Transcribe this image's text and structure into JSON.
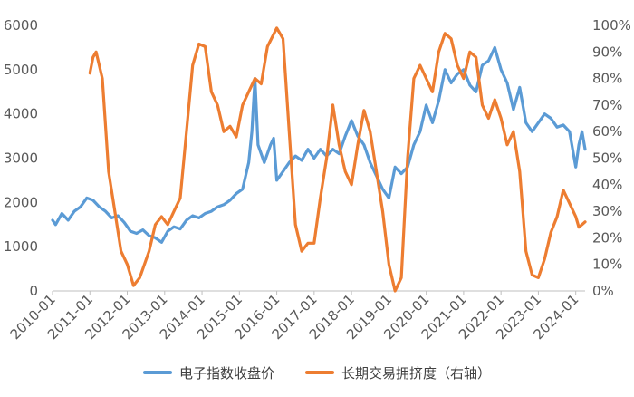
{
  "chart_data": {
    "type": "line",
    "title": "",
    "x_range": [
      "2010-01",
      "2024-04"
    ],
    "x_tick_labels": [
      "2010-01",
      "2011-01",
      "2012-01",
      "2013-01",
      "2014-01",
      "2015-01",
      "2016-01",
      "2017-01",
      "2018-01",
      "2019-01",
      "2020-01",
      "2021-01",
      "2022-01",
      "2023-01",
      "2024-01"
    ],
    "y_left": {
      "range": [
        0,
        6000
      ],
      "tick_labels": [
        "0",
        "1000",
        "2000",
        "3000",
        "4000",
        "5000",
        "6000"
      ]
    },
    "y_right": {
      "range": [
        0,
        100
      ],
      "tick_labels": [
        "0%",
        "10%",
        "20%",
        "30%",
        "40%",
        "50%",
        "60%",
        "70%",
        "80%",
        "90%",
        "100%"
      ]
    },
    "grid": false,
    "legend_position": "bottom",
    "series": [
      {
        "name": "电子指数收盘价",
        "axis": "left",
        "color": "#5B9BD5",
        "points": [
          [
            "2010-01",
            1600
          ],
          [
            "2010-02",
            1500
          ],
          [
            "2010-04",
            1750
          ],
          [
            "2010-06",
            1600
          ],
          [
            "2010-08",
            1800
          ],
          [
            "2010-10",
            1900
          ],
          [
            "2010-12",
            2100
          ],
          [
            "2011-02",
            2050
          ],
          [
            "2011-04",
            1900
          ],
          [
            "2011-06",
            1800
          ],
          [
            "2011-08",
            1650
          ],
          [
            "2011-10",
            1700
          ],
          [
            "2011-12",
            1550
          ],
          [
            "2012-02",
            1350
          ],
          [
            "2012-04",
            1300
          ],
          [
            "2012-06",
            1380
          ],
          [
            "2012-08",
            1250
          ],
          [
            "2012-10",
            1200
          ],
          [
            "2012-12",
            1100
          ],
          [
            "2013-02",
            1350
          ],
          [
            "2013-04",
            1450
          ],
          [
            "2013-06",
            1400
          ],
          [
            "2013-08",
            1600
          ],
          [
            "2013-10",
            1700
          ],
          [
            "2013-12",
            1650
          ],
          [
            "2014-02",
            1750
          ],
          [
            "2014-04",
            1800
          ],
          [
            "2014-06",
            1900
          ],
          [
            "2014-08",
            1950
          ],
          [
            "2014-10",
            2050
          ],
          [
            "2014-12",
            2200
          ],
          [
            "2015-02",
            2300
          ],
          [
            "2015-04",
            2900
          ],
          [
            "2015-05",
            3600
          ],
          [
            "2015-06",
            4800
          ],
          [
            "2015-07",
            3300
          ],
          [
            "2015-09",
            2900
          ],
          [
            "2015-11",
            3300
          ],
          [
            "2015-12",
            3450
          ],
          [
            "2016-01",
            2500
          ],
          [
            "2016-03",
            2700
          ],
          [
            "2016-05",
            2900
          ],
          [
            "2016-07",
            3050
          ],
          [
            "2016-09",
            2950
          ],
          [
            "2016-11",
            3200
          ],
          [
            "2017-01",
            3000
          ],
          [
            "2017-03",
            3200
          ],
          [
            "2017-05",
            3050
          ],
          [
            "2017-07",
            3200
          ],
          [
            "2017-09",
            3100
          ],
          [
            "2017-11",
            3500
          ],
          [
            "2018-01",
            3850
          ],
          [
            "2018-03",
            3500
          ],
          [
            "2018-05",
            3300
          ],
          [
            "2018-07",
            2900
          ],
          [
            "2018-09",
            2600
          ],
          [
            "2018-11",
            2300
          ],
          [
            "2019-01",
            2100
          ],
          [
            "2019-03",
            2800
          ],
          [
            "2019-05",
            2650
          ],
          [
            "2019-07",
            2800
          ],
          [
            "2019-09",
            3300
          ],
          [
            "2019-11",
            3600
          ],
          [
            "2020-01",
            4200
          ],
          [
            "2020-03",
            3800
          ],
          [
            "2020-05",
            4300
          ],
          [
            "2020-07",
            5000
          ],
          [
            "2020-09",
            4700
          ],
          [
            "2020-11",
            4900
          ],
          [
            "2021-01",
            5000
          ],
          [
            "2021-03",
            4650
          ],
          [
            "2021-05",
            4500
          ],
          [
            "2021-07",
            5100
          ],
          [
            "2021-09",
            5200
          ],
          [
            "2021-11",
            5500
          ],
          [
            "2022-01",
            5000
          ],
          [
            "2022-03",
            4700
          ],
          [
            "2022-05",
            4100
          ],
          [
            "2022-07",
            4600
          ],
          [
            "2022-09",
            3800
          ],
          [
            "2022-11",
            3600
          ],
          [
            "2023-01",
            3800
          ],
          [
            "2023-03",
            4000
          ],
          [
            "2023-05",
            3900
          ],
          [
            "2023-07",
            3700
          ],
          [
            "2023-09",
            3750
          ],
          [
            "2023-11",
            3600
          ],
          [
            "2024-01",
            2800
          ],
          [
            "2024-02",
            3300
          ],
          [
            "2024-03",
            3600
          ],
          [
            "2024-04",
            3200
          ]
        ]
      },
      {
        "name": "长期交易拥挤度（右轴）",
        "axis": "right",
        "color": "#ED7D31",
        "points": [
          [
            "2011-01",
            82
          ],
          [
            "2011-02",
            88
          ],
          [
            "2011-03",
            90
          ],
          [
            "2011-05",
            80
          ],
          [
            "2011-07",
            45
          ],
          [
            "2011-09",
            30
          ],
          [
            "2011-11",
            15
          ],
          [
            "2012-01",
            10
          ],
          [
            "2012-03",
            2
          ],
          [
            "2012-05",
            5
          ],
          [
            "2012-08",
            15
          ],
          [
            "2012-10",
            25
          ],
          [
            "2012-12",
            28
          ],
          [
            "2013-02",
            25
          ],
          [
            "2013-04",
            30
          ],
          [
            "2013-06",
            35
          ],
          [
            "2013-08",
            60
          ],
          [
            "2013-10",
            85
          ],
          [
            "2013-12",
            93
          ],
          [
            "2014-02",
            92
          ],
          [
            "2014-04",
            75
          ],
          [
            "2014-06",
            70
          ],
          [
            "2014-08",
            60
          ],
          [
            "2014-10",
            62
          ],
          [
            "2014-12",
            58
          ],
          [
            "2015-02",
            70
          ],
          [
            "2015-04",
            75
          ],
          [
            "2015-06",
            80
          ],
          [
            "2015-08",
            78
          ],
          [
            "2015-10",
            92
          ],
          [
            "2016-01",
            99
          ],
          [
            "2016-03",
            95
          ],
          [
            "2016-05",
            60
          ],
          [
            "2016-07",
            25
          ],
          [
            "2016-09",
            15
          ],
          [
            "2016-11",
            18
          ],
          [
            "2017-01",
            18
          ],
          [
            "2017-03",
            35
          ],
          [
            "2017-05",
            50
          ],
          [
            "2017-07",
            70
          ],
          [
            "2017-09",
            55
          ],
          [
            "2017-11",
            45
          ],
          [
            "2018-01",
            40
          ],
          [
            "2018-03",
            55
          ],
          [
            "2018-05",
            68
          ],
          [
            "2018-07",
            60
          ],
          [
            "2018-09",
            45
          ],
          [
            "2018-11",
            30
          ],
          [
            "2019-01",
            10
          ],
          [
            "2019-03",
            0
          ],
          [
            "2019-05",
            5
          ],
          [
            "2019-07",
            50
          ],
          [
            "2019-09",
            80
          ],
          [
            "2019-11",
            85
          ],
          [
            "2020-01",
            80
          ],
          [
            "2020-03",
            75
          ],
          [
            "2020-05",
            90
          ],
          [
            "2020-07",
            97
          ],
          [
            "2020-09",
            95
          ],
          [
            "2020-11",
            85
          ],
          [
            "2021-01",
            80
          ],
          [
            "2021-03",
            90
          ],
          [
            "2021-05",
            88
          ],
          [
            "2021-07",
            70
          ],
          [
            "2021-09",
            65
          ],
          [
            "2021-11",
            72
          ],
          [
            "2022-01",
            65
          ],
          [
            "2022-03",
            55
          ],
          [
            "2022-05",
            60
          ],
          [
            "2022-07",
            45
          ],
          [
            "2022-09",
            15
          ],
          [
            "2022-11",
            6
          ],
          [
            "2023-01",
            5
          ],
          [
            "2023-03",
            12
          ],
          [
            "2023-05",
            22
          ],
          [
            "2023-07",
            28
          ],
          [
            "2023-09",
            38
          ],
          [
            "2023-11",
            33
          ],
          [
            "2024-01",
            28
          ],
          [
            "2024-02",
            24
          ],
          [
            "2024-03",
            25
          ],
          [
            "2024-04",
            26
          ]
        ]
      }
    ]
  }
}
